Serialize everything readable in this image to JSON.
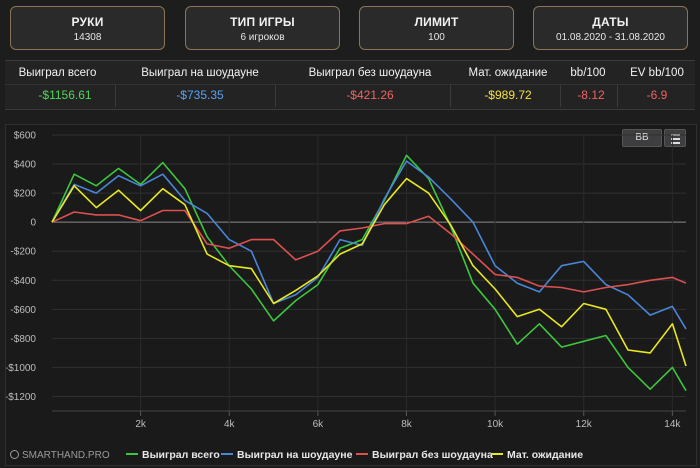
{
  "cards": [
    {
      "title": "РУКИ",
      "value": "14308"
    },
    {
      "title": "ТИП ИГРЫ",
      "value": "6 игроков"
    },
    {
      "title": "ЛИМИТ",
      "value": "100"
    },
    {
      "title": "ДАТЫ",
      "value": "01.08.2020 - 31.08.2020"
    }
  ],
  "stats": {
    "headers": [
      "Выиграл всего",
      "Выиграл на шоудауне",
      "Выиграл без шоудауна",
      "Мат. ожидание",
      "bb/100",
      "EV bb/100"
    ],
    "values": [
      "-$1156.61",
      "-$735.35",
      "-$421.26",
      "-$989.72",
      "-8.12",
      "-6.9"
    ],
    "value_colors": [
      "#52d35a",
      "#5aa3f0",
      "#f06262",
      "#f2e23f",
      "#f06262",
      "#f06262"
    ]
  },
  "chart_buttons": {
    "bb_label": "BB",
    "menu_icon": "hamburger-menu-icon"
  },
  "watermark": "SMARTHAND.PRO",
  "chart_data": {
    "type": "line",
    "xlim": [
      0,
      14308
    ],
    "ylim": [
      -1300,
      600
    ],
    "x_ticks": [
      2000,
      4000,
      6000,
      8000,
      10000,
      12000,
      14000
    ],
    "x_tick_labels": [
      "2k",
      "4k",
      "6k",
      "8k",
      "10k",
      "12k",
      "14k"
    ],
    "y_ticks": [
      600,
      400,
      200,
      0,
      -200,
      -400,
      -600,
      -800,
      -1000,
      -1200
    ],
    "y_tick_labels": [
      "$600",
      "$400",
      "$200",
      "0",
      "-$200",
      "-$400",
      "-$600",
      "-$800",
      "-$1000",
      "-$1200"
    ],
    "legend_position": "bottom",
    "series": [
      {
        "name": "Выиграл всего",
        "color": "#3dc63d",
        "x": [
          0,
          500,
          1000,
          1500,
          2000,
          2500,
          3000,
          3500,
          4000,
          4500,
          5000,
          5500,
          6000,
          6500,
          7000,
          7500,
          8000,
          8500,
          9000,
          9500,
          10000,
          10500,
          11000,
          11500,
          12000,
          12500,
          13000,
          13500,
          14000,
          14308
        ],
        "y": [
          0,
          330,
          250,
          370,
          260,
          410,
          230,
          -100,
          -300,
          -460,
          -680,
          -540,
          -430,
          -180,
          -120,
          150,
          460,
          300,
          -30,
          -420,
          -600,
          -840,
          -700,
          -860,
          -820,
          -780,
          -1000,
          -1150,
          -1000,
          -1160
        ]
      },
      {
        "name": "Выиграл на шоудауне",
        "color": "#4a86d8",
        "x": [
          0,
          500,
          1000,
          1500,
          2000,
          2500,
          3000,
          3500,
          4000,
          4500,
          5000,
          5500,
          6000,
          6500,
          7000,
          7500,
          8000,
          8500,
          9000,
          9500,
          10000,
          10500,
          11000,
          11500,
          12000,
          12500,
          13000,
          13500,
          14000,
          14308
        ],
        "y": [
          0,
          260,
          200,
          320,
          250,
          330,
          150,
          60,
          -120,
          -200,
          -560,
          -500,
          -380,
          -120,
          -160,
          160,
          420,
          310,
          160,
          0,
          -300,
          -420,
          -480,
          -300,
          -270,
          -430,
          -500,
          -640,
          -580,
          -735
        ]
      },
      {
        "name": "Выиграл без шоудауна",
        "color": "#dc5050",
        "x": [
          0,
          500,
          1000,
          1500,
          2000,
          2500,
          3000,
          3500,
          4000,
          4500,
          5000,
          5500,
          6000,
          6500,
          7000,
          7500,
          8000,
          8500,
          9000,
          9500,
          10000,
          10500,
          11000,
          11500,
          12000,
          12500,
          13000,
          13500,
          14000,
          14308
        ],
        "y": [
          0,
          70,
          50,
          50,
          10,
          80,
          80,
          -150,
          -180,
          -120,
          -120,
          -260,
          -200,
          -60,
          -40,
          -10,
          -10,
          40,
          -80,
          -220,
          -360,
          -380,
          -440,
          -450,
          -480,
          -450,
          -430,
          -400,
          -380,
          -420
        ]
      },
      {
        "name": "Мат. ожидание",
        "color": "#e8e820",
        "x": [
          0,
          500,
          1000,
          1500,
          2000,
          2500,
          3000,
          3500,
          4000,
          4500,
          5000,
          5500,
          6000,
          6500,
          7000,
          7500,
          8000,
          8500,
          9000,
          9500,
          10000,
          10500,
          11000,
          11500,
          12000,
          12500,
          13000,
          13500,
          14000,
          14308
        ],
        "y": [
          0,
          250,
          100,
          220,
          80,
          230,
          120,
          -220,
          -300,
          -320,
          -560,
          -470,
          -370,
          -220,
          -150,
          120,
          300,
          200,
          -20,
          -300,
          -460,
          -650,
          -600,
          -720,
          -560,
          -600,
          -880,
          -900,
          -700,
          -990
        ]
      }
    ]
  }
}
